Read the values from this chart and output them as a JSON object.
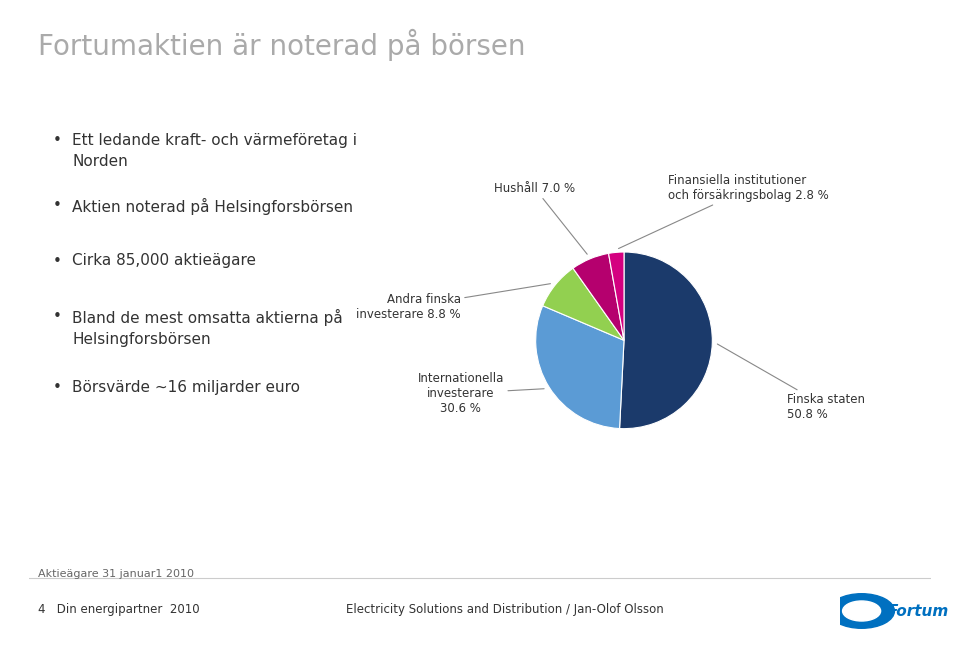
{
  "title": "Fortumaktien är noterad på börsen",
  "title_color": "#aaaaaa",
  "title_fontsize": 20,
  "bullet_texts": [
    "Ett ledande kraft- och värmeفöretag i Norden",
    "Aktien noterad på Helsingforsbörsen",
    "Cirka 85,000 aktieägare",
    "Bland de mest omsatta aktierna på Helsingforsbörsen",
    "Börsvärde ~16 miljarder euro"
  ],
  "bullet_line2": [
    "Norden",
    "",
    "",
    "Helsingforsbörsen",
    ""
  ],
  "pie_values": [
    50.8,
    30.6,
    8.8,
    7.0,
    2.8
  ],
  "pie_colors": [
    "#1b3a6b",
    "#5b9bd5",
    "#92d050",
    "#b5006e",
    "#d40080"
  ],
  "pie_label_texts": [
    "Finska staten\n50.8 %",
    "Internationella\ninvesterare\n30.6 %",
    "Andra finska\ninvesterare 8.8 %",
    "Hushåll 7.0 %",
    "Finansiella institutioner\noch försäkringsbolag 2.8 %"
  ],
  "footnote": "Aktieägare 31 januar1 2010",
  "footer_left": "4   Din energipartner  2010",
  "footer_center": "Electricity Solutions and Distribution / Jan-Olof Olsson",
  "background_color": "#ffffff",
  "text_color": "#333333"
}
